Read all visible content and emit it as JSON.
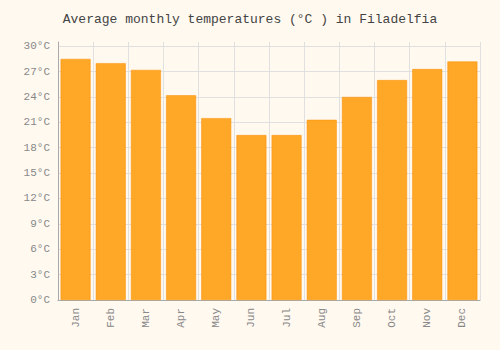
{
  "chart_data": {
    "type": "bar",
    "title": "Average monthly temperatures (°C ) in Filadelfia",
    "categories": [
      "Jan",
      "Feb",
      "Mar",
      "Apr",
      "May",
      "Jun",
      "Jul",
      "Aug",
      "Sep",
      "Oct",
      "Nov",
      "Dec"
    ],
    "values": [
      28.5,
      28.0,
      27.2,
      24.2,
      21.5,
      19.5,
      19.5,
      21.3,
      24.0,
      26.0,
      27.3,
      28.2
    ],
    "color": "#FFA726",
    "ylim": [
      0,
      30.5
    ],
    "yticks": [
      {
        "value": 0,
        "label": "0°C"
      },
      {
        "value": 3,
        "label": "3°C"
      },
      {
        "value": 6,
        "label": "6°C"
      },
      {
        "value": 9,
        "label": "9°C"
      },
      {
        "value": 12,
        "label": "12°C"
      },
      {
        "value": 15,
        "label": "15°C"
      },
      {
        "value": 18,
        "label": "18°C"
      },
      {
        "value": 21,
        "label": "21°C"
      },
      {
        "value": 24,
        "label": "24°C"
      },
      {
        "value": 27,
        "label": "27°C"
      },
      {
        "value": 30,
        "label": "30°C"
      }
    ],
    "grid": true
  }
}
